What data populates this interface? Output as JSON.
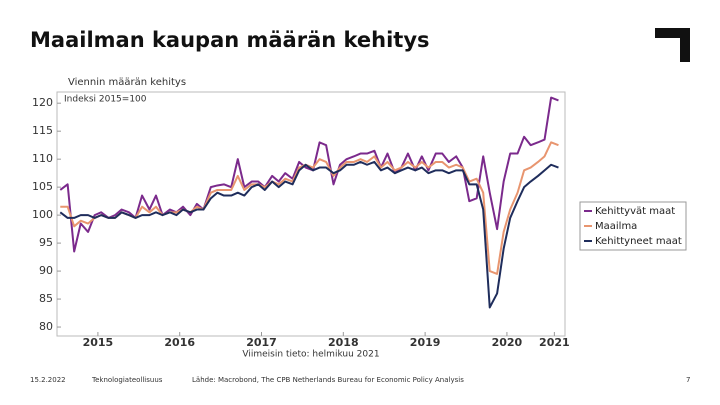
{
  "slide": {
    "title": "Maailman kaupan määrän kehitys",
    "footer": {
      "date": "15.2.2022",
      "company": "Teknologiateollisuus",
      "source": "Lähde: Macrobond, The CPB Netherlands Bureau for Economic Policy Analysis",
      "page": "7"
    }
  },
  "chart_data": {
    "type": "line",
    "title": "Viennin määrän kehitys",
    "y_label": "Indeksi 2015=100",
    "x_label": "Viimeisin tieto: helmikuu 2021",
    "xlim": [
      2015,
      2021.21
    ],
    "ylim": [
      78.4,
      122
    ],
    "xticks": [
      {
        "value": 2015.5,
        "label": "2015"
      },
      {
        "value": 2016.5,
        "label": "2016"
      },
      {
        "value": 2017.5,
        "label": "2017"
      },
      {
        "value": 2018.5,
        "label": "2018"
      },
      {
        "value": 2019.5,
        "label": "2019"
      },
      {
        "value": 2020.5,
        "label": "2020"
      },
      {
        "value": 2021.08,
        "label": "2021"
      }
    ],
    "yticks": [
      80,
      85,
      90,
      95,
      100,
      105,
      110,
      115,
      120
    ],
    "grid": false,
    "legend": "right",
    "x": [
      2015.04,
      2015.13,
      2015.21,
      2015.29,
      2015.38,
      2015.46,
      2015.54,
      2015.63,
      2015.71,
      2015.79,
      2015.88,
      2015.96,
      2016.04,
      2016.13,
      2016.21,
      2016.29,
      2016.38,
      2016.46,
      2016.54,
      2016.63,
      2016.71,
      2016.79,
      2016.88,
      2016.96,
      2017.04,
      2017.13,
      2017.21,
      2017.29,
      2017.38,
      2017.46,
      2017.54,
      2017.63,
      2017.71,
      2017.79,
      2017.88,
      2017.96,
      2018.04,
      2018.13,
      2018.21,
      2018.29,
      2018.38,
      2018.46,
      2018.54,
      2018.63,
      2018.71,
      2018.79,
      2018.88,
      2018.96,
      2019.04,
      2019.13,
      2019.21,
      2019.29,
      2019.38,
      2019.46,
      2019.54,
      2019.63,
      2019.71,
      2019.79,
      2019.88,
      2019.96,
      2020.04,
      2020.13,
      2020.21,
      2020.29,
      2020.38,
      2020.46,
      2020.54,
      2020.63,
      2020.71,
      2020.79,
      2020.88,
      2020.96,
      2021.04,
      2021.13
    ],
    "series": [
      {
        "name": "Kehittyvät maat",
        "color": "#7b2a8c",
        "values": [
          104.5,
          105.5,
          93.5,
          98.5,
          97,
          100,
          100.5,
          99.5,
          100,
          101,
          100.5,
          99.5,
          103.5,
          101,
          103.5,
          100,
          101,
          100.5,
          101.5,
          100,
          102,
          101,
          105,
          105.3,
          105.5,
          105,
          110,
          105,
          106,
          106,
          105,
          107,
          106,
          107.5,
          106.5,
          109.5,
          108.5,
          108,
          113,
          112.5,
          105.5,
          109,
          110,
          110.5,
          111,
          111,
          111.5,
          108.5,
          111,
          107.5,
          108.5,
          111,
          108,
          110.5,
          108,
          111,
          111,
          109.5,
          110.5,
          108.5,
          102.5,
          103,
          110.5,
          104,
          97.5,
          106,
          111,
          111,
          114,
          112.5,
          113,
          113.5,
          121,
          120.5
        ]
      },
      {
        "name": "Maailma",
        "color": "#e8956f",
        "values": [
          101.5,
          101.5,
          98,
          99,
          98.5,
          99.5,
          100,
          99.5,
          99.5,
          100.5,
          100,
          99.5,
          101.5,
          100.5,
          101.5,
          100,
          100.5,
          100.5,
          101,
          100.5,
          101.5,
          101,
          104,
          104.5,
          104.5,
          104.5,
          107,
          104.5,
          105.5,
          105.5,
          105,
          106,
          105.5,
          106.5,
          106,
          108.5,
          109,
          108.5,
          110,
          109.5,
          107,
          108.5,
          109.5,
          109.5,
          110,
          109.5,
          110.5,
          108.5,
          109.5,
          108,
          108.5,
          109.5,
          108.5,
          109.5,
          108.5,
          109.5,
          109.5,
          108.5,
          109,
          108.5,
          106,
          106.5,
          104,
          90,
          89.5,
          97,
          101,
          104,
          108,
          108.5,
          109.5,
          110.5,
          113,
          112.5
        ]
      },
      {
        "name": "Kehittyneet maat",
        "color": "#1f2d5c",
        "values": [
          100.5,
          99.5,
          99.5,
          100,
          100,
          99.5,
          100,
          99.5,
          99.5,
          100.5,
          100,
          99.5,
          100,
          100,
          100.5,
          100,
          100.5,
          100,
          101,
          100.5,
          101,
          101,
          103,
          104,
          103.5,
          103.5,
          104,
          103.5,
          105,
          105.5,
          104.5,
          106,
          105,
          106,
          105.5,
          108,
          109,
          108,
          108.5,
          108.5,
          107.5,
          108,
          109,
          109,
          109.5,
          109,
          109.5,
          108,
          108.5,
          107.5,
          108,
          108.5,
          108,
          108.5,
          107.5,
          108,
          108,
          107.5,
          108,
          108,
          105.5,
          105.5,
          101,
          83.5,
          86,
          94,
          99.5,
          102.5,
          105,
          106,
          107,
          108,
          109,
          108.5
        ]
      }
    ]
  }
}
